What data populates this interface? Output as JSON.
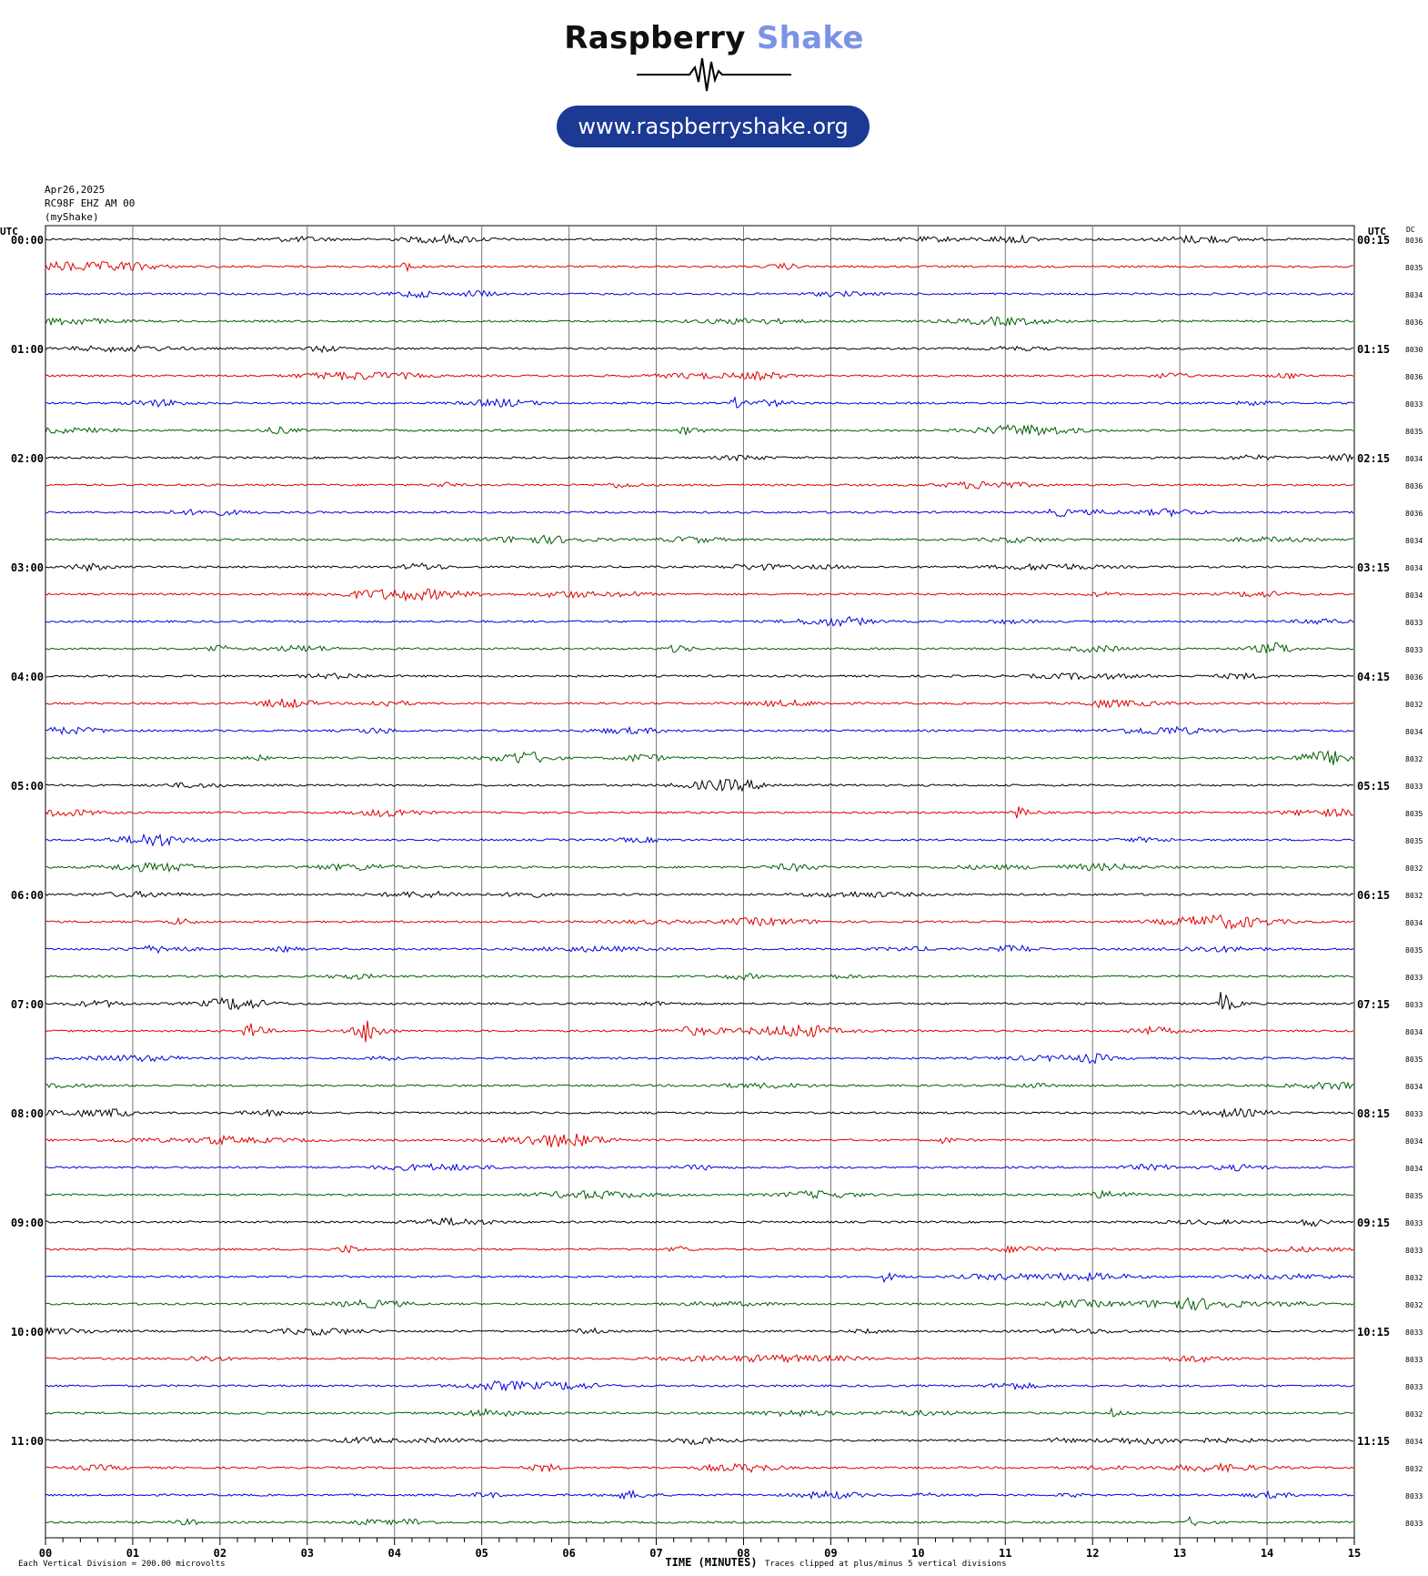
{
  "brand": {
    "word1": "Raspberry",
    "word2": "Shake",
    "url": "www.raspberryshake.org",
    "accent_color": "#7b93e6",
    "pill_color": "#1c3a94"
  },
  "header": {
    "date": "Apr26,2025",
    "station": "RC98F EHZ AM 00",
    "source": "(myShake)"
  },
  "chart_data": {
    "type": "line",
    "title": "",
    "xlabel": "TIME (MINUTES)",
    "left_axis_title": "UTC",
    "right_axis_title": "UTC",
    "dc_title": "DC",
    "xlim": [
      0,
      15
    ],
    "x_ticks": [
      "00",
      "01",
      "02",
      "03",
      "04",
      "05",
      "06",
      "07",
      "08",
      "09",
      "10",
      "11",
      "12",
      "13",
      "14",
      "15"
    ],
    "trace_colors": [
      "#000000",
      "#e00000",
      "#0000e0",
      "#006000"
    ],
    "hour_labels_left": [
      "00:00",
      "01:00",
      "02:00",
      "03:00",
      "04:00",
      "05:00",
      "06:00",
      "07:00",
      "08:00",
      "09:00",
      "10:00",
      "11:00"
    ],
    "hour_labels_right": [
      "00:15",
      "01:15",
      "02:15",
      "03:15",
      "04:15",
      "05:15",
      "06:15",
      "07:15",
      "08:15",
      "09:15",
      "10:15",
      "11:15"
    ],
    "dc_values": [
      "8036",
      "8035",
      "8034",
      "8036",
      "8030",
      "8036",
      "8033",
      "8035",
      "8034",
      "8036",
      "8036",
      "8034",
      "8034",
      "8034",
      "8033",
      "8033",
      "8036",
      "8032",
      "8034",
      "8032",
      "8033",
      "8035",
      "8035",
      "8032",
      "8032",
      "8034",
      "8035",
      "8033",
      "8033",
      "8034",
      "8035",
      "8034",
      "8033",
      "8034",
      "8034",
      "8035",
      "8033",
      "8033",
      "8032",
      "8032",
      "8033",
      "8033",
      "8033",
      "8032",
      "8034",
      "8032",
      "8033",
      "8033"
    ],
    "scale_note": "Each Vertical Division =  200.00 microvolts",
    "clip_note": "Traces clipped at plus/minus 5 vertical divisions",
    "events": [
      {
        "row": 28,
        "minute": 13.45,
        "amplitude": 1.0
      },
      {
        "row": 29,
        "minute": 2.3,
        "amplitude": 0.8
      },
      {
        "row": 29,
        "minute": 3.65,
        "amplitude": 1.25
      },
      {
        "row": 21,
        "minute": 11.1,
        "amplitude": 0.55
      },
      {
        "row": 7,
        "minute": 7.3,
        "amplitude": 0.5
      },
      {
        "row": 6,
        "minute": 7.85,
        "amplitude": 0.45
      },
      {
        "row": 33,
        "minute": 10.25,
        "amplitude": 0.3
      },
      {
        "row": 38,
        "minute": 9.6,
        "amplitude": 0.35
      },
      {
        "row": 43,
        "minute": 12.2,
        "amplitude": 0.3
      },
      {
        "row": 47,
        "minute": 13.1,
        "amplitude": 0.35
      }
    ]
  }
}
